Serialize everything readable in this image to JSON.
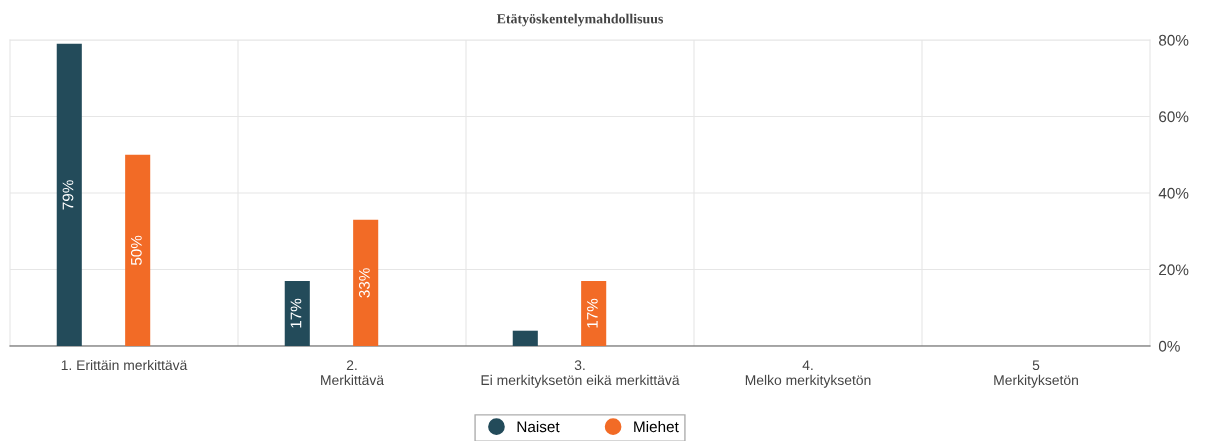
{
  "chart_data": {
    "type": "bar",
    "title": "Etätyöskentelymahdollisuus",
    "categories": [
      "1. Erittäin merkittävä",
      "2.\nMerkittävä",
      "3.\nEi merkityksetön eikä merkittävä",
      "4.\nMelko merkityksetön",
      "5\nMerkityksetön"
    ],
    "series": [
      {
        "name": "Naiset",
        "color": "#234b5a",
        "values": [
          79,
          17,
          4,
          0,
          0
        ],
        "value_labels": [
          "79%",
          "17%",
          null,
          null,
          null
        ]
      },
      {
        "name": "Miehet",
        "color": "#f26b26",
        "values": [
          50,
          33,
          17,
          0,
          0
        ],
        "value_labels": [
          "50%",
          "33%",
          "17%",
          null,
          null
        ]
      }
    ],
    "ylim": [
      0,
      80
    ],
    "yticks": [
      {
        "value": 0,
        "label": "0%"
      },
      {
        "value": 20,
        "label": "20%"
      },
      {
        "value": 40,
        "label": "40%"
      },
      {
        "value": 60,
        "label": "60%"
      },
      {
        "value": 80,
        "label": "80%"
      }
    ],
    "grid": true,
    "legend": "bottom"
  }
}
